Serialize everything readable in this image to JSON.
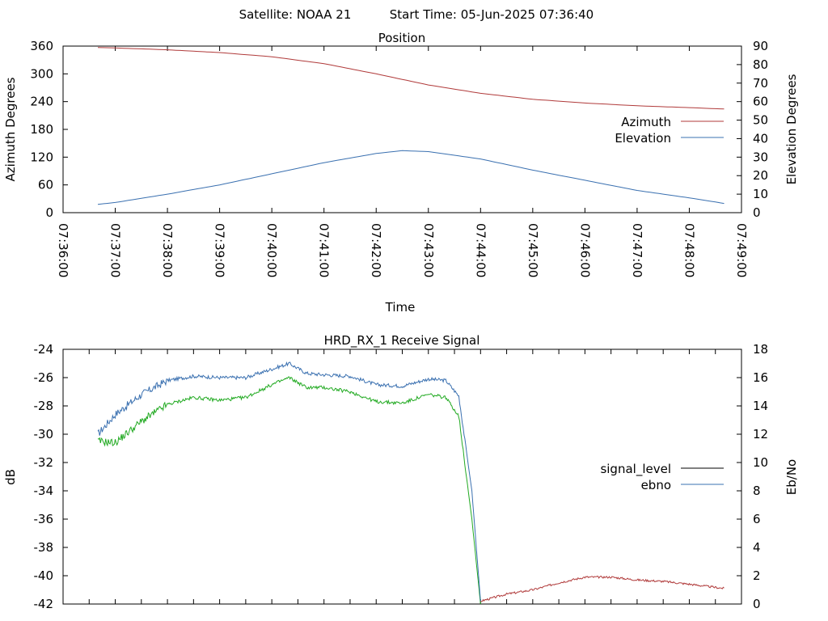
{
  "header": {
    "satellite": "Satellite: NOAA 21",
    "start_time": "Start Time: 05-Jun-2025 07:36:40"
  },
  "chart_data": [
    {
      "type": "line",
      "title": "Position",
      "xlabel": "Time",
      "ylabel": "Azimuth Degrees",
      "y2label": "Elevation Degrees",
      "xlim": [
        "07:36:00",
        "07:49:00"
      ],
      "ylim": [
        0,
        360
      ],
      "y2lim": [
        0,
        90
      ],
      "x_ticks": [
        "07:36:00",
        "07:37:00",
        "07:38:00",
        "07:39:00",
        "07:40:00",
        "07:41:00",
        "07:42:00",
        "07:43:00",
        "07:44:00",
        "07:45:00",
        "07:46:00",
        "07:47:00",
        "07:48:00",
        "07:49:00"
      ],
      "y_ticks": [
        0,
        60,
        120,
        180,
        240,
        300,
        360
      ],
      "y2_ticks": [
        0,
        10,
        20,
        30,
        40,
        50,
        60,
        70,
        80,
        90
      ],
      "legend_position": "right",
      "grid": false,
      "series": [
        {
          "name": "Azimuth",
          "axis": "left",
          "color": "#b03a3a",
          "x": [
            "07:36:40",
            "07:37:00",
            "07:38:00",
            "07:39:00",
            "07:40:00",
            "07:41:00",
            "07:42:00",
            "07:43:00",
            "07:44:00",
            "07:45:00",
            "07:46:00",
            "07:47:00",
            "07:48:00",
            "07:48:40"
          ],
          "y": [
            357,
            356,
            352,
            346,
            337,
            322,
            300,
            276,
            258,
            245,
            237,
            231,
            227,
            224
          ]
        },
        {
          "name": "Elevation",
          "axis": "right",
          "color": "#3a70b0",
          "x": [
            "07:36:40",
            "07:37:00",
            "07:38:00",
            "07:39:00",
            "07:40:00",
            "07:41:00",
            "07:42:00",
            "07:42:30",
            "07:43:00",
            "07:44:00",
            "07:45:00",
            "07:46:00",
            "07:47:00",
            "07:48:00",
            "07:48:40"
          ],
          "y": [
            4.5,
            5.5,
            10,
            15,
            21,
            27,
            32,
            33.5,
            33,
            29,
            23,
            17.5,
            12,
            8,
            5
          ]
        }
      ]
    },
    {
      "type": "line",
      "title": "HRD_RX_1 Receive Signal",
      "ylabel": "dB",
      "y2label": "Eb/No",
      "ylim": [
        -42,
        -24
      ],
      "y2lim": [
        0,
        18
      ],
      "y_ticks": [
        -42,
        -40,
        -38,
        -36,
        -34,
        -32,
        -30,
        -28,
        -26,
        -24
      ],
      "y2_ticks": [
        0,
        2,
        4,
        6,
        8,
        10,
        12,
        14,
        16,
        18
      ],
      "legend_position": "right",
      "grid": false,
      "series": [
        {
          "name": "signal_level",
          "axis": "left",
          "color": "#000000",
          "legend_color": "#000000",
          "x": [
            "07:36:40",
            "07:37:00",
            "07:37:30",
            "07:38:00",
            "07:38:30",
            "07:39:00",
            "07:39:30",
            "07:40:00",
            "07:40:20",
            "07:40:40",
            "07:41:00",
            "07:41:30",
            "07:42:00",
            "07:42:30",
            "07:43:00",
            "07:43:20",
            "07:43:35",
            "07:43:50",
            "07:44:00",
            "07:44:30",
            "07:45:00",
            "07:45:30",
            "07:46:00",
            "07:46:30",
            "07:47:00",
            "07:47:30",
            "07:48:00",
            "07:48:40"
          ],
          "y": [
            -30.0,
            -28.6,
            -27.2,
            -26.2,
            -25.9,
            -26.0,
            -26.0,
            -25.4,
            -25.0,
            -25.7,
            -25.8,
            -25.9,
            -26.5,
            -26.6,
            -26.1,
            -26.2,
            -27.3,
            -34.0,
            -41.8,
            -41.3,
            -41.0,
            -40.5,
            -40.1,
            -40.1,
            -40.3,
            -40.4,
            -40.6,
            -40.9
          ]
        },
        {
          "name": "ebno",
          "axis": "right",
          "color": "#22aa22",
          "legend_color": "#3a70b0",
          "x": [
            "07:36:40",
            "07:37:00",
            "07:37:30",
            "07:38:00",
            "07:38:30",
            "07:39:00",
            "07:39:30",
            "07:40:00",
            "07:40:20",
            "07:40:40",
            "07:41:00",
            "07:41:30",
            "07:42:00",
            "07:42:30",
            "07:43:00",
            "07:43:20",
            "07:43:35",
            "07:43:50",
            "07:44:00"
          ],
          "y": [
            11.5,
            11.4,
            12.9,
            14.1,
            14.6,
            14.4,
            14.6,
            15.5,
            16.0,
            15.3,
            15.3,
            15.0,
            14.3,
            14.2,
            14.8,
            14.6,
            13.3,
            6.0,
            0.0
          ]
        }
      ]
    }
  ]
}
